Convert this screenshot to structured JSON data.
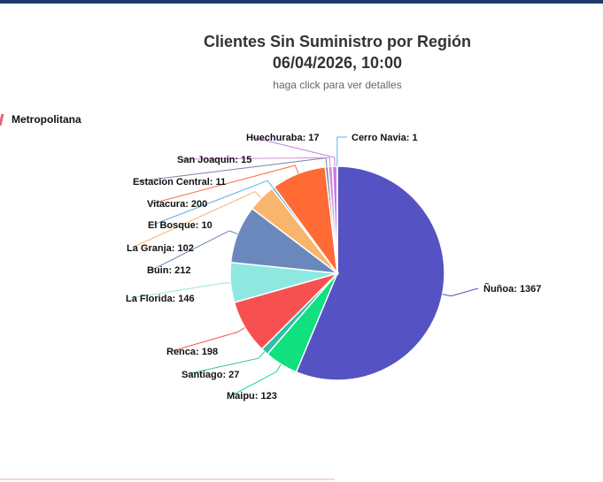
{
  "header": {
    "title_line1": "Clientes Sin Suministro por Región",
    "title_line2": "06/04/2026, 10:00",
    "subtitle": "haga click para ver detalles"
  },
  "legend": {
    "label": "Metropolitana",
    "color": "#e4637a"
  },
  "chart_data": {
    "type": "pie",
    "title": "Clientes Sin Suministro por Región",
    "subtitle": "06/04/2026, 10:00",
    "legend": [
      "Metropolitana"
    ],
    "legend_position": "top-left",
    "labels": [
      "Ñuñoa",
      "Maipu",
      "Santiago",
      "Renca",
      "La Florida",
      "Buin",
      "La Granja",
      "El Bosque",
      "Vitacura",
      "Estacion Central",
      "San Joaquin",
      "Huechuraba",
      "Cerro Navia"
    ],
    "values": [
      1367,
      123,
      27,
      198,
      146,
      212,
      102,
      10,
      200,
      11,
      15,
      17,
      1
    ],
    "colors": [
      "#5552c3",
      "#10e07e",
      "#2fbfa8",
      "#f75050",
      "#8ee8e0",
      "#6b88bd",
      "#f9b56c",
      "#5fb0e6",
      "#ff6a35",
      "#7a84a8",
      "#d58ed8",
      "#c97ae6",
      "#5ab4e8"
    ],
    "data_label_format": "{label}: {value}"
  }
}
